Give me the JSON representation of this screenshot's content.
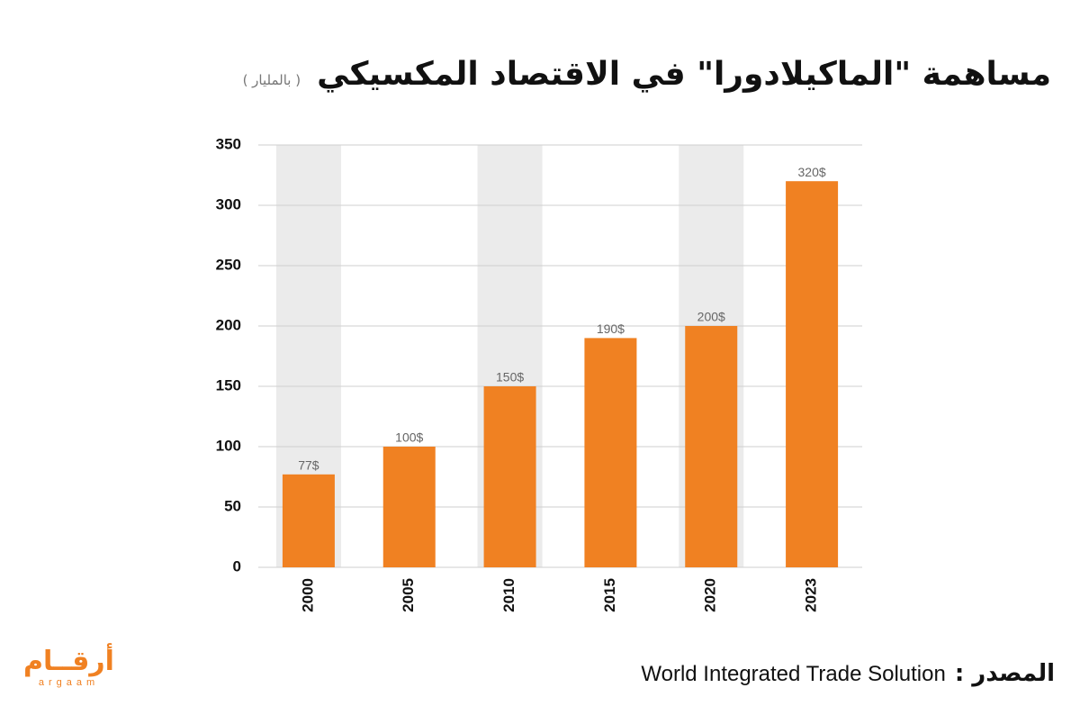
{
  "chart_data": {
    "type": "bar",
    "title": "مساهمة \"الماكيلادورا\" في الاقتصاد المكسيكي",
    "subtitle": "( بالمليار )",
    "categories": [
      "2000",
      "2005",
      "2010",
      "2015",
      "2020",
      "2023"
    ],
    "values": [
      77,
      100,
      150,
      190,
      200,
      320
    ],
    "value_labels": [
      "77$",
      "100$",
      "150$",
      "190$",
      "200$",
      "320$"
    ],
    "color": "#f08122",
    "band_color": "#ebebeb",
    "ylim": [
      0,
      350
    ],
    "yticks": [
      0,
      50,
      100,
      150,
      200,
      250,
      300,
      350
    ],
    "grid": true
  },
  "footer": {
    "source_label": "المصدر :",
    "source": "World Integrated Trade Solution",
    "logo": "أرقــام",
    "logo_latin": "argaam"
  }
}
